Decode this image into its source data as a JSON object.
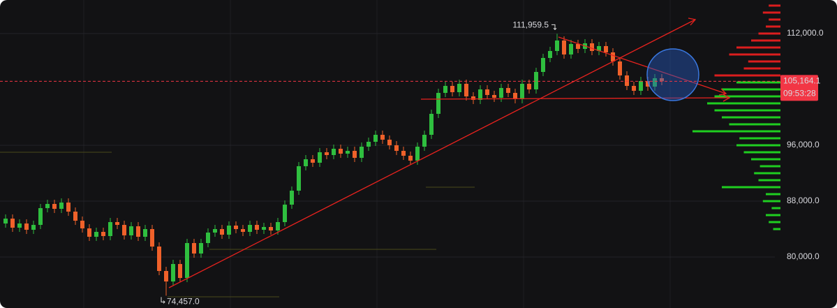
{
  "chart_data": {
    "type": "candlestick",
    "ylim": [
      72700,
      116800
    ],
    "yticks": [
      {
        "value": 80000,
        "label": "80,000.0"
      },
      {
        "value": 88000,
        "label": "88,000.0"
      },
      {
        "value": 96000,
        "label": "96,000.0"
      },
      {
        "value": 112000,
        "label": "112,000.0"
      }
    ],
    "grid": true,
    "up_color": "#2fbf3f",
    "down_color": "#f0612a",
    "series": {
      "open": [
        84800,
        85500,
        84200,
        84800,
        83900,
        84600,
        87000,
        87600,
        86900,
        87800,
        86500,
        85200,
        84100,
        82900,
        83600,
        83000,
        85000,
        84600,
        83100,
        84400,
        82900,
        84000,
        81500,
        78000,
        76500,
        79000,
        77000,
        82000,
        80500,
        82000,
        83500,
        84000,
        83200,
        84500,
        84000,
        83600,
        84600,
        83900,
        84300,
        83800,
        85000,
        87500,
        89500,
        93000,
        94000,
        93500,
        95000,
        94600,
        95500,
        94800,
        95200,
        94200,
        95800,
        96500,
        97500,
        96800,
        96000,
        95200,
        94500,
        93800,
        95800,
        97500,
        100500,
        103500,
        104500,
        103600,
        104800,
        103000,
        102500,
        104000,
        103200,
        102800,
        104200,
        103500,
        102600,
        104800,
        104000,
        106500,
        108500,
        109500,
        111000,
        109000,
        110500,
        109800,
        110600,
        109500,
        110200,
        109300,
        108000,
        106000,
        104500,
        103800,
        105200,
        104400,
        105600
      ],
      "high": [
        86100,
        86100,
        85400,
        85400,
        85200,
        87600,
        88200,
        88200,
        88400,
        88400,
        87100,
        85800,
        84700,
        84200,
        84200,
        85600,
        85600,
        85200,
        85000,
        85000,
        84600,
        84600,
        82100,
        78600,
        79600,
        79600,
        82600,
        82600,
        82600,
        84100,
        84600,
        84600,
        85100,
        85100,
        84600,
        85200,
        85200,
        84900,
        84900,
        85600,
        88100,
        90100,
        93600,
        94600,
        94600,
        95600,
        95600,
        96100,
        96100,
        95800,
        95800,
        96400,
        97100,
        98100,
        98100,
        97400,
        96600,
        95800,
        95100,
        96400,
        98100,
        101100,
        104100,
        105100,
        105100,
        105400,
        105400,
        103600,
        104600,
        104600,
        103800,
        104800,
        104800,
        104100,
        105400,
        105400,
        107100,
        109100,
        110100,
        111959.5,
        111600,
        111100,
        111100,
        111200,
        111200,
        110800,
        110800,
        109900,
        108600,
        106600,
        105100,
        105800,
        105800,
        106200,
        106200
      ],
      "low": [
        84200,
        83600,
        83600,
        83300,
        83300,
        84000,
        86400,
        86300,
        86300,
        85900,
        84600,
        83500,
        82300,
        82300,
        82400,
        82400,
        84000,
        82500,
        82500,
        82300,
        82300,
        80900,
        77400,
        74457,
        75900,
        76400,
        76400,
        79900,
        79900,
        81400,
        82900,
        82600,
        82600,
        83400,
        83000,
        83000,
        83300,
        83300,
        83200,
        83200,
        84400,
        86900,
        88900,
        92400,
        92900,
        92900,
        94000,
        94000,
        94200,
        94200,
        93600,
        93600,
        95200,
        95900,
        96200,
        95400,
        94600,
        93900,
        93200,
        93200,
        95200,
        96900,
        99900,
        102900,
        103000,
        103000,
        102400,
        101900,
        101900,
        102600,
        102200,
        102200,
        102900,
        102000,
        102000,
        103400,
        103400,
        105900,
        107900,
        108900,
        108400,
        108400,
        109200,
        109200,
        108900,
        108900,
        108700,
        107400,
        105400,
        103900,
        103200,
        103200,
        103800,
        103800,
        104600
      ],
      "close": [
        85500,
        84200,
        84800,
        83900,
        84600,
        87000,
        87600,
        86900,
        87800,
        86500,
        85200,
        84100,
        82900,
        83600,
        83000,
        85000,
        84600,
        83100,
        84400,
        82900,
        84000,
        81500,
        78000,
        76500,
        79000,
        77000,
        82000,
        80500,
        82000,
        83500,
        84000,
        83200,
        84500,
        84000,
        83600,
        84600,
        83900,
        84300,
        83800,
        85000,
        87500,
        89500,
        93000,
        94000,
        93500,
        95000,
        94600,
        95500,
        94800,
        95200,
        94200,
        95800,
        96500,
        97500,
        96800,
        96000,
        95200,
        94500,
        93800,
        95800,
        97500,
        100500,
        103500,
        104500,
        103600,
        104800,
        103000,
        102500,
        104000,
        103200,
        102800,
        104200,
        103500,
        102600,
        104800,
        104000,
        106500,
        108500,
        109500,
        111000,
        109000,
        110500,
        109800,
        110600,
        109500,
        110200,
        109300,
        108000,
        106000,
        104500,
        103800,
        105200,
        104400,
        105600,
        105164.1
      ]
    },
    "high_annotation": {
      "value": 111959.5,
      "label": "111,959.5"
    },
    "low_annotation": {
      "value": 74457,
      "label": "74,457.0"
    },
    "last_price": {
      "value": 105164.1,
      "label": "105,164.1",
      "color": "#f23645"
    },
    "countdown": "09:53:28",
    "volume_profile": {
      "prices": [
        84000,
        85000,
        86000,
        87000,
        88000,
        89000,
        90000,
        91000,
        92000,
        93000,
        94000,
        95000,
        96000,
        97000,
        98000,
        99000,
        100000,
        101000,
        102000,
        103000,
        104000,
        105000,
        106000,
        107000,
        108000,
        109000,
        110000,
        111000,
        112000,
        113000,
        114000,
        115000,
        116000
      ],
      "volumes": [
        5,
        8,
        10,
        6,
        12,
        10,
        40,
        15,
        18,
        14,
        20,
        25,
        30,
        28,
        60,
        35,
        40,
        45,
        50,
        45,
        40,
        30,
        45,
        25,
        22,
        35,
        30,
        20,
        15,
        10,
        8,
        12,
        8
      ],
      "up_color": "#22ee22",
      "down_color": "#ff2020"
    }
  }
}
